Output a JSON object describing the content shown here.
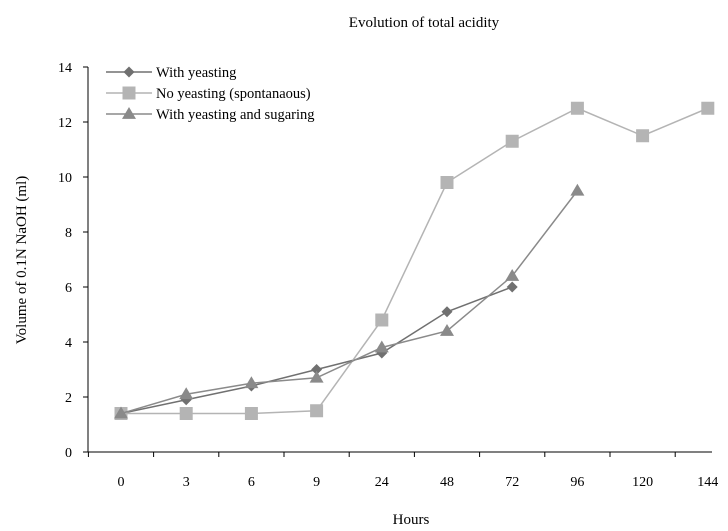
{
  "chart_data": {
    "type": "line",
    "title": "Evolution of total acidity",
    "xlabel": "Hours",
    "ylabel": "Volume of 0.1N NaOH (ml)",
    "categories": [
      "0",
      "3",
      "6",
      "9",
      "24",
      "48",
      "72",
      "96",
      "120",
      "144"
    ],
    "ylim": [
      0,
      14
    ],
    "yticks": [
      0,
      2,
      4,
      6,
      8,
      10,
      12,
      14
    ],
    "grid": false,
    "legend_position": "top-left",
    "series": [
      {
        "name": "With yeasting",
        "values": [
          1.4,
          1.9,
          2.4,
          3.0,
          3.6,
          5.1,
          6.0,
          null,
          null,
          null
        ],
        "color": "#707070",
        "marker": "diamond"
      },
      {
        "name": "No yeasting (spontanaous)",
        "values": [
          1.4,
          1.4,
          1.4,
          1.5,
          4.8,
          9.8,
          11.3,
          12.5,
          11.5,
          12.5
        ],
        "color": "#b4b4b4",
        "marker": "square"
      },
      {
        "name": "With yeasting and sugaring",
        "values": [
          1.4,
          2.1,
          2.5,
          2.7,
          3.8,
          4.4,
          6.4,
          9.5,
          null,
          null
        ],
        "color": "#8a8a8a",
        "marker": "triangle"
      }
    ]
  }
}
